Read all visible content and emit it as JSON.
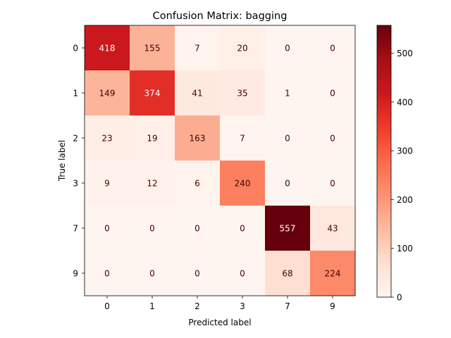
{
  "chart_data": {
    "type": "heatmap",
    "title": "Confusion Matrix: bagging",
    "xlabel": "Predicted label",
    "ylabel": "True label",
    "x_categories": [
      "0",
      "1",
      "2",
      "3",
      "7",
      "9"
    ],
    "y_categories": [
      "0",
      "1",
      "2",
      "3",
      "7",
      "9"
    ],
    "values": [
      [
        418,
        155,
        7,
        20,
        0,
        0
      ],
      [
        149,
        374,
        41,
        35,
        1,
        0
      ],
      [
        23,
        19,
        163,
        7,
        0,
        0
      ],
      [
        9,
        12,
        6,
        240,
        0,
        0
      ],
      [
        0,
        0,
        0,
        0,
        557,
        43
      ],
      [
        0,
        0,
        0,
        0,
        68,
        224
      ]
    ],
    "colormap": "Reds",
    "colorbar": {
      "range": [
        0,
        557
      ],
      "ticks": [
        0,
        100,
        200,
        300,
        400,
        500
      ]
    },
    "colors": {
      "low": "#fff5f0",
      "high": "#67000d",
      "text_on_light": "#440000",
      "text_on_dark": "#ffffff"
    },
    "grid": false
  }
}
